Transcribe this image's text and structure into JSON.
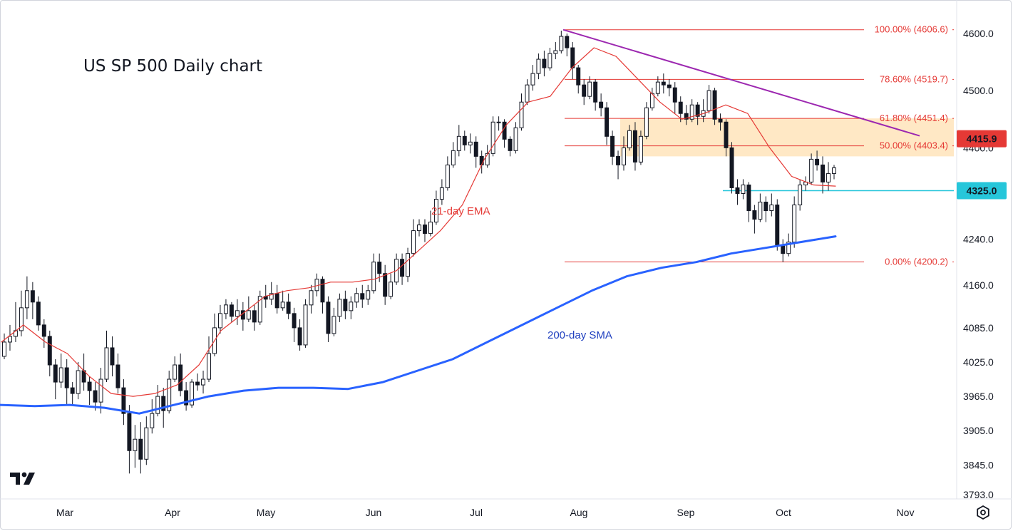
{
  "chart_data": {
    "type": "candlestick",
    "title": "US SP 500 Daily chart",
    "y_axis": {
      "ticks": [
        4600.0,
        4500.0,
        4400.0,
        4325.0,
        4240.0,
        4160.0,
        4085.0,
        4025.0,
        3965.0,
        3905.0,
        3845.0,
        3793.0
      ],
      "tick_labels": [
        "4600.0",
        "4500.0",
        "4400.0",
        "4325.0",
        "4240.0",
        "4160.0",
        "4085.0",
        "4025.0",
        "3965.0",
        "3905.0",
        "3845.0",
        "3793.0"
      ],
      "ylim": [
        3790,
        4630
      ]
    },
    "x_axis": {
      "labels": [
        "Mar",
        "Apr",
        "May",
        "Jun",
        "Jul",
        "Aug",
        "Sep",
        "Oct",
        "Nov"
      ]
    },
    "price_markers": [
      {
        "label": "4415.9",
        "value": 4415.9,
        "color": "#e53935"
      },
      {
        "label": "4325.0",
        "value": 4325.0,
        "color": "#26c6da"
      }
    ],
    "fibonacci": [
      {
        "label": "100.00% (4606.6)",
        "value": 4606.6
      },
      {
        "label": "78.60% (4519.7)",
        "value": 4519.7
      },
      {
        "label": "61.80% (4451.4)",
        "value": 4451.4
      },
      {
        "label": "50.00% (4403.4)",
        "value": 4403.4
      },
      {
        "label": "0.00% (4200.2)",
        "value": 4200.2
      }
    ],
    "resistance_zone": {
      "from": 4385,
      "to": 4451.4
    },
    "support_level": 4325.0,
    "trendline": {
      "from_value": 4606.6,
      "to_value": 4415.9,
      "color": "#9c27b0"
    },
    "series": [
      {
        "name": "21-day EMA",
        "color": "#e53935",
        "values": [
          4060,
          4090,
          4060,
          4040,
          4000,
          3970,
          3965,
          3970,
          3985,
          4020,
          4080,
          4110,
          4140,
          4150,
          4155,
          4165,
          4165,
          4170,
          4185,
          4220,
          4255,
          4300,
          4380,
          4440,
          4480,
          4490,
          4540,
          4575,
          4560,
          4520,
          4480,
          4450,
          4460,
          4475,
          4460,
          4400,
          4350,
          4335,
          4333
        ]
      },
      {
        "name": "200-day SMA",
        "color": "#2962ff",
        "values": [
          3950,
          3948,
          3950,
          3945,
          3935,
          3950,
          3965,
          3975,
          3980,
          3980,
          3978,
          3990,
          4010,
          4030,
          4060,
          4090,
          4120,
          4150,
          4175,
          4190,
          4200,
          4215,
          4225,
          4235,
          4245
        ]
      }
    ],
    "candles": [
      [
        4035,
        4060,
        4030,
        4075
      ],
      [
        4060,
        4070,
        4045,
        4090
      ],
      [
        4070,
        4080,
        4060,
        4130
      ],
      [
        4080,
        4120,
        4070,
        4150
      ],
      [
        4120,
        4150,
        4100,
        4175
      ],
      [
        4150,
        4130,
        4100,
        4165
      ],
      [
        4130,
        4090,
        4080,
        4140
      ],
      [
        4090,
        4070,
        4050,
        4100
      ],
      [
        4070,
        4020,
        4000,
        4080
      ],
      [
        4020,
        3990,
        3960,
        4030
      ],
      [
        3990,
        4015,
        3980,
        4040
      ],
      [
        4015,
        3980,
        3950,
        4030
      ],
      [
        3980,
        3970,
        3950,
        3990
      ],
      [
        3970,
        4010,
        3960,
        4025
      ],
      [
        4010,
        3990,
        3975,
        4040
      ],
      [
        3990,
        3975,
        3950,
        4000
      ],
      [
        3975,
        3955,
        3940,
        3990
      ],
      [
        3955,
        3995,
        3935,
        4015
      ],
      [
        3995,
        4050,
        3990,
        4080
      ],
      [
        4050,
        4020,
        4000,
        4070
      ],
      [
        4020,
        3980,
        3970,
        4040
      ],
      [
        3980,
        3935,
        3915,
        3995
      ],
      [
        3935,
        3870,
        3830,
        3950
      ],
      [
        3870,
        3890,
        3840,
        3915
      ],
      [
        3890,
        3855,
        3830,
        3920
      ],
      [
        3855,
        3910,
        3845,
        3930
      ],
      [
        3910,
        3935,
        3900,
        3960
      ],
      [
        3935,
        3965,
        3930,
        3985
      ],
      [
        3965,
        3940,
        3910,
        3980
      ],
      [
        3940,
        3995,
        3935,
        4010
      ],
      [
        3995,
        4020,
        3990,
        4035
      ],
      [
        4020,
        3975,
        3965,
        4040
      ],
      [
        3975,
        3950,
        3940,
        3990
      ],
      [
        3950,
        3990,
        3945,
        3995
      ],
      [
        3990,
        3985,
        3975,
        4005
      ],
      [
        3985,
        3995,
        3970,
        4010
      ],
      [
        3995,
        4040,
        3990,
        4070
      ],
      [
        4040,
        4085,
        4035,
        4110
      ],
      [
        4085,
        4110,
        4075,
        4125
      ],
      [
        4110,
        4125,
        4100,
        4135
      ],
      [
        4125,
        4105,
        4095,
        4130
      ],
      [
        4105,
        4115,
        4090,
        4135
      ],
      [
        4115,
        4100,
        4080,
        4130
      ],
      [
        4100,
        4115,
        4095,
        4140
      ],
      [
        4115,
        4095,
        4080,
        4125
      ],
      [
        4095,
        4140,
        4090,
        4150
      ],
      [
        4140,
        4135,
        4120,
        4160
      ],
      [
        4135,
        4145,
        4125,
        4165
      ],
      [
        4145,
        4120,
        4110,
        4160
      ],
      [
        4120,
        4130,
        4115,
        4150
      ],
      [
        4130,
        4110,
        4100,
        4145
      ],
      [
        4110,
        4085,
        4060,
        4120
      ],
      [
        4085,
        4055,
        4045,
        4100
      ],
      [
        4055,
        4125,
        4050,
        4135
      ],
      [
        4125,
        4150,
        4110,
        4160
      ],
      [
        4150,
        4170,
        4140,
        4180
      ],
      [
        4170,
        4130,
        4110,
        4175
      ],
      [
        4130,
        4075,
        4060,
        4140
      ],
      [
        4075,
        4105,
        4070,
        4120
      ],
      [
        4105,
        4135,
        4095,
        4145
      ],
      [
        4135,
        4115,
        4100,
        4150
      ],
      [
        4115,
        4130,
        4100,
        4140
      ],
      [
        4130,
        4145,
        4120,
        4155
      ],
      [
        4145,
        4135,
        4120,
        4160
      ],
      [
        4135,
        4150,
        4125,
        4160
      ],
      [
        4150,
        4200,
        4145,
        4215
      ],
      [
        4200,
        4180,
        4165,
        4215
      ],
      [
        4180,
        4140,
        4125,
        4195
      ],
      [
        4140,
        4165,
        4135,
        4180
      ],
      [
        4165,
        4205,
        4160,
        4215
      ],
      [
        4205,
        4175,
        4160,
        4215
      ],
      [
        4175,
        4215,
        4165,
        4225
      ],
      [
        4215,
        4255,
        4210,
        4275
      ],
      [
        4255,
        4265,
        4245,
        4275
      ],
      [
        4265,
        4250,
        4235,
        4275
      ],
      [
        4250,
        4270,
        4245,
        4290
      ],
      [
        4270,
        4310,
        4265,
        4325
      ],
      [
        4310,
        4330,
        4300,
        4345
      ],
      [
        4330,
        4370,
        4325,
        4385
      ],
      [
        4370,
        4395,
        4365,
        4410
      ],
      [
        4395,
        4420,
        4385,
        4440
      ],
      [
        4420,
        4405,
        4395,
        4430
      ],
      [
        4405,
        4410,
        4390,
        4425
      ],
      [
        4410,
        4385,
        4365,
        4420
      ],
      [
        4385,
        4370,
        4355,
        4395
      ],
      [
        4370,
        4390,
        4365,
        4405
      ],
      [
        4390,
        4445,
        4385,
        4455
      ],
      [
        4445,
        4445,
        4430,
        4455
      ],
      [
        4445,
        4415,
        4400,
        4450
      ],
      [
        4415,
        4395,
        4385,
        4420
      ],
      [
        4395,
        4435,
        4390,
        4445
      ],
      [
        4435,
        4480,
        4430,
        4495
      ],
      [
        4480,
        4510,
        4475,
        4520
      ],
      [
        4510,
        4530,
        4500,
        4545
      ],
      [
        4530,
        4555,
        4520,
        4565
      ],
      [
        4555,
        4540,
        4525,
        4570
      ],
      [
        4540,
        4565,
        4535,
        4575
      ],
      [
        4565,
        4570,
        4555,
        4585
      ],
      [
        4570,
        4595,
        4565,
        4605
      ],
      [
        4595,
        4575,
        4560,
        4600
      ],
      [
        4575,
        4540,
        4520,
        4585
      ],
      [
        4540,
        4510,
        4495,
        4545
      ],
      [
        4510,
        4490,
        4475,
        4520
      ],
      [
        4490,
        4515,
        4485,
        4525
      ],
      [
        4515,
        4480,
        4465,
        4520
      ],
      [
        4480,
        4470,
        4455,
        4495
      ],
      [
        4470,
        4420,
        4405,
        4480
      ],
      [
        4420,
        4385,
        4370,
        4430
      ],
      [
        4385,
        4370,
        4345,
        4395
      ],
      [
        4370,
        4400,
        4360,
        4420
      ],
      [
        4400,
        4430,
        4395,
        4440
      ],
      [
        4430,
        4375,
        4360,
        4445
      ],
      [
        4375,
        4420,
        4370,
        4430
      ],
      [
        4420,
        4470,
        4415,
        4480
      ],
      [
        4470,
        4495,
        4465,
        4505
      ],
      [
        4495,
        4515,
        4490,
        4525
      ],
      [
        4515,
        4510,
        4495,
        4530
      ],
      [
        4510,
        4505,
        4490,
        4520
      ],
      [
        4505,
        4480,
        4460,
        4515
      ],
      [
        4480,
        4460,
        4445,
        4490
      ],
      [
        4460,
        4450,
        4440,
        4475
      ],
      [
        4450,
        4475,
        4445,
        4485
      ],
      [
        4475,
        4455,
        4440,
        4480
      ],
      [
        4455,
        4465,
        4445,
        4485
      ],
      [
        4465,
        4500,
        4460,
        4510
      ],
      [
        4500,
        4450,
        4440,
        4505
      ],
      [
        4450,
        4445,
        4430,
        4460
      ],
      [
        4445,
        4400,
        4385,
        4450
      ],
      [
        4400,
        4330,
        4320,
        4410
      ],
      [
        4330,
        4320,
        4300,
        4345
      ],
      [
        4320,
        4335,
        4310,
        4345
      ],
      [
        4335,
        4290,
        4270,
        4340
      ],
      [
        4290,
        4275,
        4250,
        4300
      ],
      [
        4275,
        4305,
        4270,
        4320
      ],
      [
        4305,
        4290,
        4270,
        4315
      ],
      [
        4290,
        4300,
        4280,
        4320
      ],
      [
        4300,
        4230,
        4220,
        4310
      ],
      [
        4230,
        4215,
        4200,
        4240
      ],
      [
        4215,
        4235,
        4210,
        4250
      ],
      [
        4235,
        4300,
        4225,
        4315
      ],
      [
        4300,
        4335,
        4290,
        4345
      ],
      [
        4335,
        4340,
        4325,
        4350
      ],
      [
        4340,
        4380,
        4335,
        4390
      ],
      [
        4380,
        4370,
        4360,
        4395
      ],
      [
        4370,
        4340,
        4320,
        4385
      ],
      [
        4340,
        4355,
        4325,
        4375
      ],
      [
        4355,
        4365,
        4345,
        4370
      ]
    ]
  },
  "ui": {
    "settings_icon": "gear-icon",
    "logo": "tradingview-logo"
  }
}
